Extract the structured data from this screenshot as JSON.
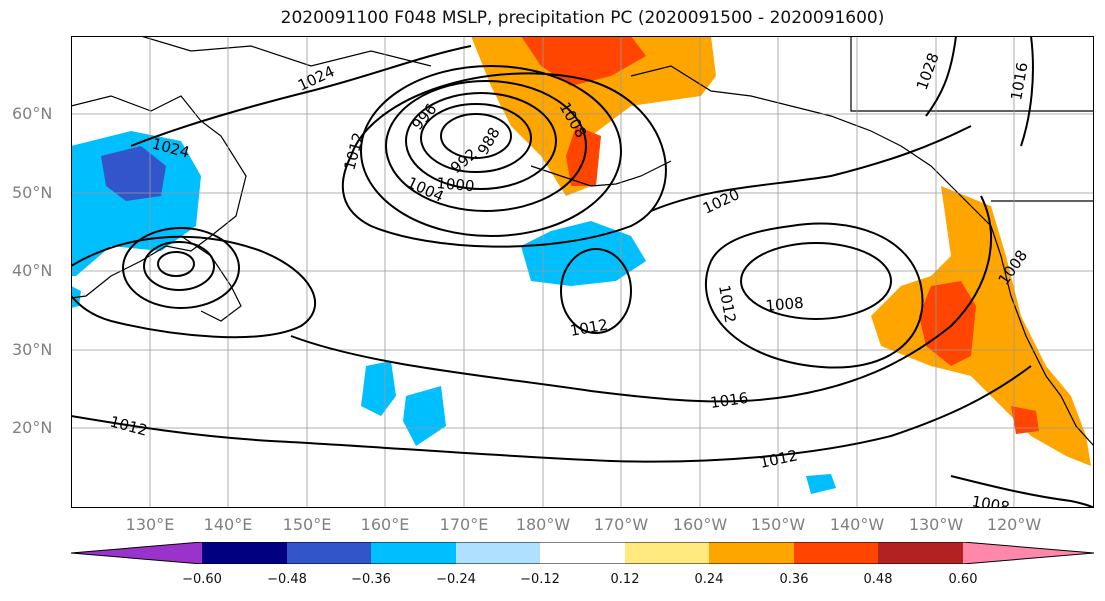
{
  "title": "2020091100 F048 MSLP, precipitation PC (2020091500 - 2020091600)",
  "lat_labels": [
    "60°N",
    "50°N",
    "40°N",
    "30°N",
    "20°N"
  ],
  "lon_labels": [
    "130°E",
    "140°E",
    "150°E",
    "160°E",
    "170°E",
    "180°W",
    "170°W",
    "160°W",
    "150°W",
    "140°W",
    "130°W",
    "120°W"
  ],
  "isobar_labels": [
    "1024",
    "1024",
    "996",
    "992",
    "988",
    "1000",
    "1004",
    "1012",
    "1008",
    "1008",
    "1020",
    "1028",
    "1016",
    "1012",
    "1012",
    "1016",
    "1012",
    "1008",
    "1012",
    "1008"
  ],
  "colorbar": {
    "ticks": [
      "−0.60",
      "−0.48",
      "−0.36",
      "−0.24",
      "−0.12",
      "0.12",
      "0.24",
      "0.36",
      "0.48",
      "0.60"
    ],
    "colors": [
      "#9933cc",
      "#000080",
      "#3355cc",
      "#00bfff",
      "#b0e0ff",
      "#ffffff",
      "#ffea80",
      "#ffa500",
      "#ff4500",
      "#b22222",
      "#ff88aa"
    ]
  }
}
